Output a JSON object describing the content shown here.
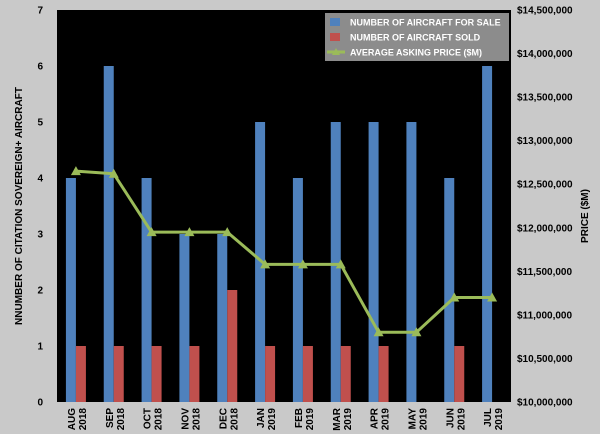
{
  "chart_data": {
    "type": "bar",
    "categories": [
      [
        "AUG",
        "2018"
      ],
      [
        "SEP",
        "2018"
      ],
      [
        "OCT",
        "2018"
      ],
      [
        "NOV",
        "2018"
      ],
      [
        "DEC",
        "2018"
      ],
      [
        "JAN",
        "2019"
      ],
      [
        "FEB",
        "2019"
      ],
      [
        "MAR",
        "2019"
      ],
      [
        "APR",
        "2019"
      ],
      [
        "MAY",
        "2019"
      ],
      [
        "JUN",
        "2019"
      ],
      [
        "JUL",
        "2019"
      ]
    ],
    "series": [
      {
        "name": "NUMBER OF AIRCRAFT FOR SALE",
        "type": "bar",
        "axis": "left",
        "color": "#4f81bd",
        "values": [
          4,
          6,
          4,
          3,
          3,
          5,
          4,
          5,
          5,
          5,
          4,
          6
        ]
      },
      {
        "name": "NUMBER OF AIRCRAFT SOLD",
        "type": "bar",
        "axis": "left",
        "color": "#c0504d",
        "values": [
          1,
          1,
          1,
          1,
          2,
          1,
          1,
          1,
          1,
          null,
          1,
          null
        ]
      },
      {
        "name": "AVERAGE ASKING PRICE ($M)",
        "type": "line",
        "axis": "right",
        "color": "#9bbb59",
        "values": [
          12650000,
          12620000,
          11950000,
          11950000,
          11950000,
          11580000,
          11580000,
          11580000,
          10800000,
          10800000,
          11200000,
          11200000
        ]
      }
    ],
    "ylabel": "NNUMBER OF CITATION SOVEREIGN+ AIRCRAFT",
    "y2label": "PRICE ($M)",
    "xlabel": "",
    "ylim": [
      0,
      7
    ],
    "y_ticks": [
      "0",
      "1",
      "2",
      "3",
      "4",
      "5",
      "6",
      "7"
    ],
    "y2lim": [
      10000000,
      14500000
    ],
    "y2_ticks": [
      "$10,000,000",
      "$10,500,000",
      "$11,000,000",
      "$11,500,000",
      "$12,000,000",
      "$12,500,000",
      "$13,000,000",
      "$13,500,000",
      "$14,000,000",
      "$14,500,000"
    ],
    "legend_position": "top-right",
    "plot_background": "#000000",
    "page_background": "#c9c9c9"
  }
}
